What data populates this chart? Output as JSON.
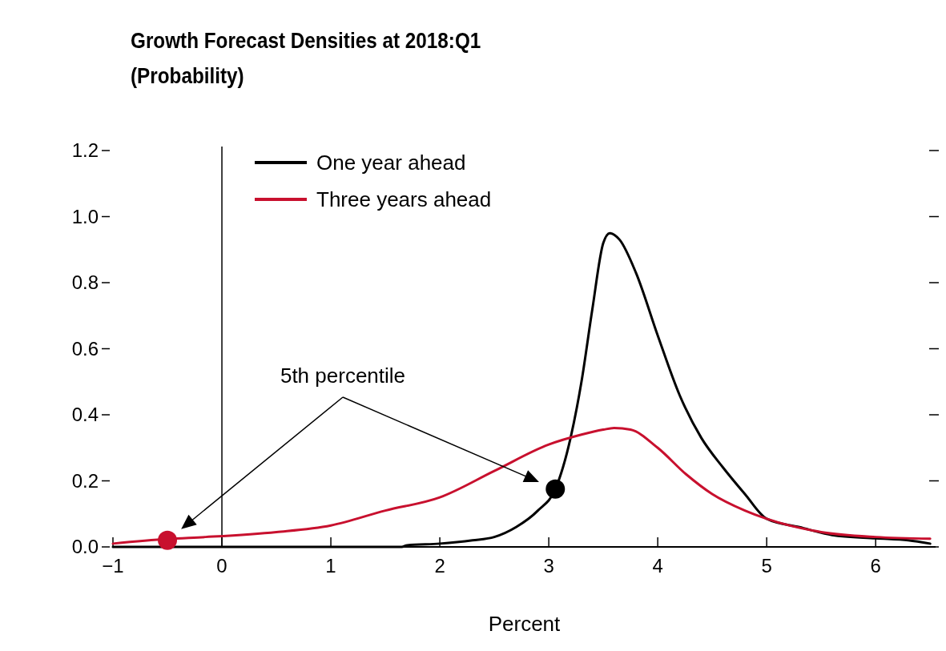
{
  "chart_data": {
    "type": "line",
    "title": "Growth Forecast Densities at 2018:Q1",
    "subtitle": "(Probability)",
    "xlabel": "Percent",
    "xlim": [
      -1,
      6.55
    ],
    "ylim": [
      0,
      1.2
    ],
    "xticks": [
      {
        "value": -1,
        "label": "−1"
      },
      0,
      1,
      2,
      3,
      4,
      5,
      6
    ],
    "yticks": [
      {
        "value": 0,
        "label": "0.0"
      },
      0.2,
      0.4,
      0.6,
      0.8,
      {
        "value": 1,
        "label": "1.0"
      },
      1.2
    ],
    "legend": "top left",
    "grid": false,
    "marker": "none",
    "line_style": "solid",
    "ref_lines": [
      {
        "axis": "x",
        "value": 0,
        "color": "#000000"
      }
    ],
    "annotations": [
      "5th percentile"
    ],
    "series": [
      {
        "name": "One year ahead",
        "color": "#000000",
        "x": [
          -1,
          0,
          1,
          1.65,
          1.7,
          2,
          2.3,
          2.5,
          2.7,
          2.9,
          3.06,
          3.2,
          3.3,
          3.4,
          3.5,
          3.56,
          3.65,
          3.8,
          4,
          4.2,
          4.4,
          4.6,
          4.8,
          5,
          5.3,
          5.6,
          6,
          6.3,
          6.5
        ],
        "values": [
          0,
          0,
          0,
          0,
          0.005,
          0.01,
          0.02,
          0.03,
          0.06,
          0.11,
          0.175,
          0.33,
          0.5,
          0.72,
          0.92,
          0.95,
          0.93,
          0.83,
          0.64,
          0.46,
          0.33,
          0.24,
          0.16,
          0.085,
          0.06,
          0.036,
          0.026,
          0.02,
          0.01
        ]
      },
      {
        "name": "Three years ahead",
        "color": "#c8102e",
        "x": [
          -1,
          -0.5,
          -0.15,
          0.5,
          1,
          1.5,
          2,
          2.5,
          3,
          3.3,
          3.5,
          3.6,
          3.75,
          4,
          4.26,
          4.5,
          4.8,
          5,
          5.5,
          6,
          6.5
        ],
        "values": [
          0.01,
          0.024,
          0.03,
          0.045,
          0.065,
          0.11,
          0.15,
          0.23,
          0.31,
          0.34,
          0.355,
          0.36,
          0.355,
          0.3,
          0.22,
          0.16,
          0.11,
          0.085,
          0.045,
          0.03,
          0.025
        ]
      },
      {
        "type": "scatter",
        "marker": "circle",
        "color": "#c8102e",
        "x": [
          -0.5
        ],
        "values": [
          0.02
        ]
      },
      {
        "type": "scatter",
        "marker": "circle",
        "color": "#000000",
        "x": [
          3.06
        ],
        "values": [
          0.175
        ]
      }
    ]
  }
}
